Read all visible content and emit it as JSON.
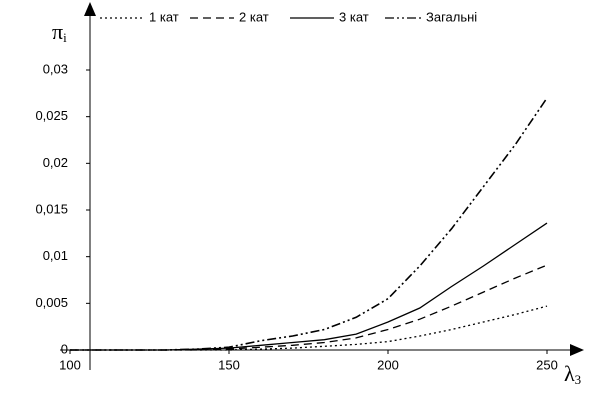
{
  "chart_data": {
    "type": "line",
    "x_label": {
      "symbol": "λ",
      "index": "3"
    },
    "y_label": {
      "symbol": "π",
      "index": "i"
    },
    "x": [
      100,
      110,
      120,
      130,
      140,
      150,
      160,
      170,
      180,
      190,
      200,
      210,
      220,
      230,
      240,
      250
    ],
    "series": [
      {
        "name": "1 кат",
        "color": "#000000",
        "style": "dotted",
        "values": [
          0,
          0,
          0,
          0,
          0,
          0,
          0.0001,
          0.0002,
          0.0004,
          0.0006,
          0.0009,
          0.0015,
          0.0022,
          0.003,
          0.0038,
          0.0047
        ]
      },
      {
        "name": "2 кат",
        "color": "#000000",
        "style": "dashed",
        "values": [
          0,
          0,
          0,
          0,
          0,
          0.0001,
          0.0003,
          0.0005,
          0.0008,
          0.0013,
          0.0022,
          0.0033,
          0.0047,
          0.0062,
          0.0077,
          0.0091
        ]
      },
      {
        "name": "3 кат",
        "color": "#000000",
        "style": "solid",
        "values": [
          0,
          0,
          0,
          0,
          0.0001,
          0.0002,
          0.0005,
          0.0008,
          0.0011,
          0.0017,
          0.003,
          0.0045,
          0.0068,
          0.009,
          0.0113,
          0.0136
        ]
      },
      {
        "name": "Загальні",
        "color": "#000000",
        "style": "dashdotdot",
        "values": [
          0,
          0,
          0,
          0,
          0.0001,
          0.0003,
          0.001,
          0.0015,
          0.0022,
          0.0035,
          0.0055,
          0.009,
          0.013,
          0.0175,
          0.022,
          0.027
        ]
      }
    ],
    "xlim": [
      100,
      250
    ],
    "xticks": [
      100,
      150,
      200,
      250
    ],
    "ylim": [
      0,
      0.03
    ],
    "yticks": [
      0,
      {
        "value": 0.005,
        "label": "0,005"
      },
      {
        "value": 0.01,
        "label": "0,01"
      },
      {
        "value": 0.015,
        "label": "0,015"
      },
      {
        "value": 0.02,
        "label": "0,02"
      },
      {
        "value": 0.025,
        "label": "0,025"
      },
      {
        "value": 0.03,
        "label": "0,03"
      }
    ],
    "legend": "top",
    "grid": false
  }
}
